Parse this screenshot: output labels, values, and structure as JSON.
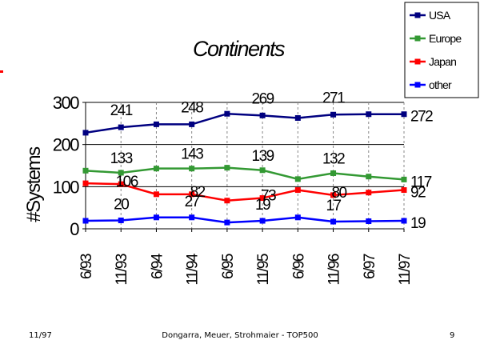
{
  "footer": {
    "left": "11/97",
    "center": "Dongarra, Meuer, Strohmaier - TOP500",
    "right": "9"
  },
  "chart_data": {
    "type": "line",
    "title": "Continents",
    "xlabel": "",
    "ylabel": "#Systems",
    "ylim": [
      0,
      300
    ],
    "yticks": [
      0,
      100,
      200,
      300
    ],
    "categories": [
      "6/93",
      "11/93",
      "6/94",
      "11/94",
      "6/95",
      "11/95",
      "6/96",
      "11/96",
      "6/97",
      "11/97"
    ],
    "grid": true,
    "legend": "top-right",
    "series": [
      {
        "name": "USA",
        "color": "#000080",
        "values": [
          228,
          241,
          248,
          248,
          273,
          269,
          263,
          271,
          272,
          272
        ]
      },
      {
        "name": "Europe",
        "color": "#339933",
        "values": [
          138,
          133,
          143,
          143,
          145,
          139,
          118,
          132,
          124,
          117
        ]
      },
      {
        "name": "Japan",
        "color": "#ff0000",
        "values": [
          108,
          106,
          82,
          82,
          67,
          73,
          92,
          80,
          86,
          92
        ]
      },
      {
        "name": "other",
        "color": "#0000ff",
        "values": [
          19,
          20,
          27,
          27,
          15,
          19,
          27,
          17,
          18,
          19
        ]
      }
    ],
    "annotations": [
      {
        "text": "241",
        "x": "11/93",
        "y": 241
      },
      {
        "text": "248",
        "x": "11/94",
        "y": 248
      },
      {
        "text": "269",
        "x": "11/95",
        "y": 269
      },
      {
        "text": "271",
        "x": "11/96",
        "y": 271
      },
      {
        "text": "272",
        "x": "11/97",
        "y": 272
      },
      {
        "text": "133",
        "x": "11/93",
        "y": 133
      },
      {
        "text": "143",
        "x": "11/94",
        "y": 143
      },
      {
        "text": "139",
        "x": "11/95",
        "y": 139
      },
      {
        "text": "132",
        "x": "11/96",
        "y": 132
      },
      {
        "text": "117",
        "x": "11/97",
        "y": 117
      },
      {
        "text": "106",
        "x": "11/93",
        "y": 106
      },
      {
        "text": "82",
        "x": "11/94",
        "y": 82
      },
      {
        "text": "73",
        "x": "11/95",
        "y": 73
      },
      {
        "text": "80",
        "x": "11/96",
        "y": 80
      },
      {
        "text": "92",
        "x": "11/97",
        "y": 92
      },
      {
        "text": "20",
        "x": "11/93",
        "y": 20
      },
      {
        "text": "27",
        "x": "11/94",
        "y": 27
      },
      {
        "text": "19",
        "x": "11/95",
        "y": 19
      },
      {
        "text": "17",
        "x": "11/96",
        "y": 17
      },
      {
        "text": "19",
        "x": "11/97",
        "y": 19
      }
    ]
  }
}
